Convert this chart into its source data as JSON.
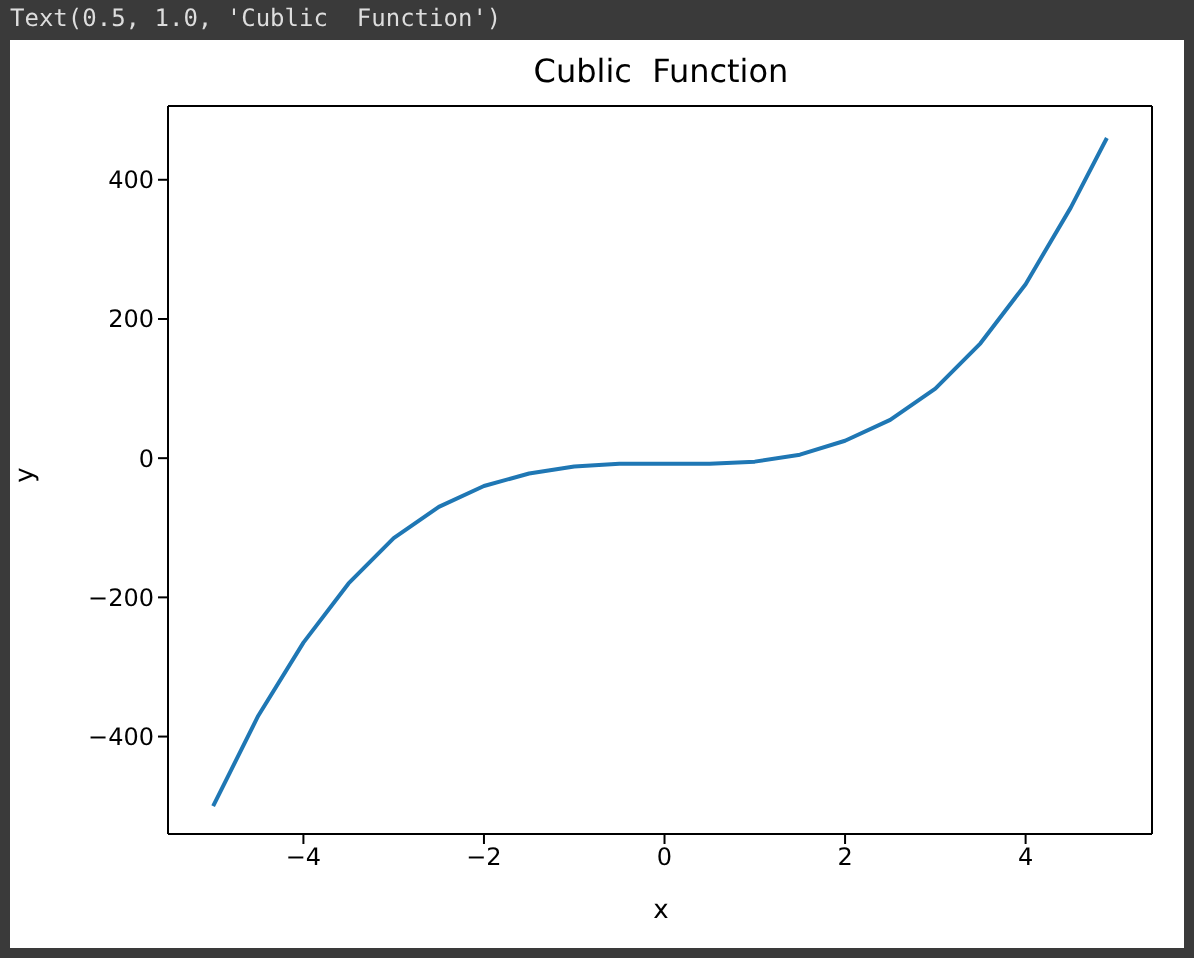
{
  "chart_data": {
    "type": "line",
    "title": "Cublic  Function",
    "xlabel": "x",
    "ylabel": "y",
    "annotations": [
      "Text(0.5, 1.0, 'Cublic  Function')"
    ],
    "x": [
      -5,
      -4.5,
      -4,
      -3.5,
      -3,
      -2.5,
      -2,
      -1.5,
      -1,
      -0.5,
      0,
      0.5,
      1,
      1.5,
      2,
      2.5,
      3,
      3.5,
      4,
      4.5,
      4.9
    ],
    "series": [
      {
        "color": "#1f77b4",
        "values": [
          -500,
          -370,
          -265,
          -180,
          -115,
          -70,
          -40,
          -22,
          -12,
          -8,
          -8,
          -8,
          -5,
          5,
          25,
          55,
          100,
          165,
          250,
          360,
          460
        ]
      }
    ],
    "xlim": [
      -5.5,
      5.4
    ],
    "ylim": [
      -540,
      506
    ],
    "xticks": [
      {
        "value": -4,
        "label": "−4"
      },
      {
        "value": -2,
        "label": "−2"
      },
      0,
      2,
      4
    ],
    "yticks": [
      {
        "value": -400,
        "label": "−400"
      },
      {
        "value": -200,
        "label": "−200"
      },
      0,
      200,
      400
    ],
    "grid": false,
    "legend": false,
    "marker": "none",
    "line_style": "solid"
  }
}
